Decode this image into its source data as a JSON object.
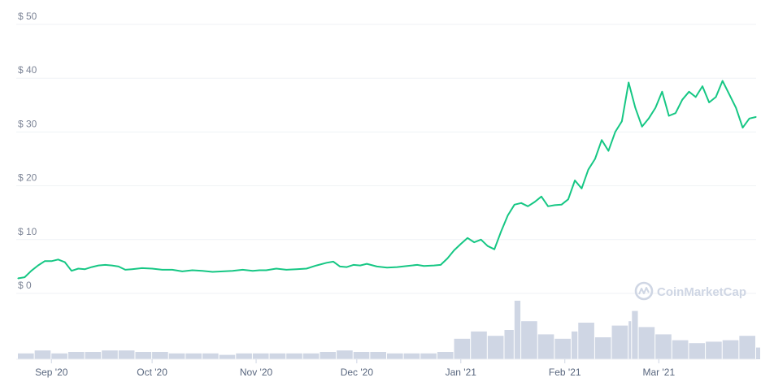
{
  "chart_data": {
    "type": "line",
    "y_axis": {
      "range": [
        0,
        50
      ],
      "ticks": [
        0,
        10,
        20,
        30,
        40,
        50
      ],
      "tick_labels": [
        "$ 0",
        "$ 10",
        "$ 20",
        "$ 30",
        "$ 40",
        "$ 50"
      ]
    },
    "x_axis": {
      "range": [
        "2020-08-22",
        "2021-03-30"
      ],
      "ticks": [
        {
          "date": "2020-09-01",
          "label": "Sep '20"
        },
        {
          "date": "2020-10-01",
          "label": "Oct '20"
        },
        {
          "date": "2020-11-01",
          "label": "Nov '20"
        },
        {
          "date": "2020-12-01",
          "label": "Dec '20"
        },
        {
          "date": "2021-01-01",
          "label": "Jan '21"
        },
        {
          "date": "2021-02-01",
          "label": "Feb '21"
        },
        {
          "date": "2021-03-01",
          "label": "Mar '21"
        }
      ]
    },
    "grid": "horizontal",
    "series": [
      {
        "type": "line",
        "color": "#16c784",
        "points": [
          [
            "2020-08-22",
            2.8
          ],
          [
            "2020-08-24",
            3.0
          ],
          [
            "2020-08-26",
            4.2
          ],
          [
            "2020-08-28",
            5.2
          ],
          [
            "2020-08-30",
            6.0
          ],
          [
            "2020-09-01",
            6.0
          ],
          [
            "2020-09-03",
            6.3
          ],
          [
            "2020-09-05",
            5.8
          ],
          [
            "2020-09-07",
            4.2
          ],
          [
            "2020-09-09",
            4.6
          ],
          [
            "2020-09-11",
            4.5
          ],
          [
            "2020-09-13",
            4.9
          ],
          [
            "2020-09-15",
            5.2
          ],
          [
            "2020-09-17",
            5.3
          ],
          [
            "2020-09-19",
            5.2
          ],
          [
            "2020-09-21",
            5.0
          ],
          [
            "2020-09-23",
            4.4
          ],
          [
            "2020-09-25",
            4.5
          ],
          [
            "2020-09-28",
            4.7
          ],
          [
            "2020-10-01",
            4.6
          ],
          [
            "2020-10-04",
            4.4
          ],
          [
            "2020-10-07",
            4.4
          ],
          [
            "2020-10-10",
            4.1
          ],
          [
            "2020-10-13",
            4.3
          ],
          [
            "2020-10-16",
            4.2
          ],
          [
            "2020-10-19",
            4.0
          ],
          [
            "2020-10-22",
            4.1
          ],
          [
            "2020-10-25",
            4.2
          ],
          [
            "2020-10-28",
            4.4
          ],
          [
            "2020-10-31",
            4.2
          ],
          [
            "2020-11-02",
            4.3
          ],
          [
            "2020-11-04",
            4.3
          ],
          [
            "2020-11-07",
            4.6
          ],
          [
            "2020-11-10",
            4.4
          ],
          [
            "2020-11-13",
            4.5
          ],
          [
            "2020-11-16",
            4.6
          ],
          [
            "2020-11-19",
            5.2
          ],
          [
            "2020-11-22",
            5.7
          ],
          [
            "2020-11-24",
            5.9
          ],
          [
            "2020-11-26",
            5.0
          ],
          [
            "2020-11-28",
            4.9
          ],
          [
            "2020-11-30",
            5.3
          ],
          [
            "2020-12-02",
            5.2
          ],
          [
            "2020-12-04",
            5.5
          ],
          [
            "2020-12-07",
            5.0
          ],
          [
            "2020-12-10",
            4.8
          ],
          [
            "2020-12-13",
            4.9
          ],
          [
            "2020-12-16",
            5.1
          ],
          [
            "2020-12-19",
            5.3
          ],
          [
            "2020-12-21",
            5.1
          ],
          [
            "2020-12-24",
            5.2
          ],
          [
            "2020-12-26",
            5.3
          ],
          [
            "2020-12-28",
            6.5
          ],
          [
            "2020-12-30",
            8.0
          ],
          [
            "2021-01-01",
            9.2
          ],
          [
            "2021-01-03",
            10.3
          ],
          [
            "2021-01-05",
            9.5
          ],
          [
            "2021-01-07",
            10.0
          ],
          [
            "2021-01-09",
            8.8
          ],
          [
            "2021-01-11",
            8.2
          ],
          [
            "2021-01-13",
            11.5
          ],
          [
            "2021-01-15",
            14.5
          ],
          [
            "2021-01-17",
            16.5
          ],
          [
            "2021-01-19",
            16.8
          ],
          [
            "2021-01-21",
            16.2
          ],
          [
            "2021-01-23",
            17.0
          ],
          [
            "2021-01-25",
            18.0
          ],
          [
            "2021-01-27",
            16.2
          ],
          [
            "2021-01-29",
            16.4
          ],
          [
            "2021-01-31",
            16.5
          ],
          [
            "2021-02-02",
            17.5
          ],
          [
            "2021-02-04",
            21.0
          ],
          [
            "2021-02-06",
            19.5
          ],
          [
            "2021-02-08",
            23.0
          ],
          [
            "2021-02-10",
            25.0
          ],
          [
            "2021-02-12",
            28.5
          ],
          [
            "2021-02-14",
            26.5
          ],
          [
            "2021-02-16",
            30.0
          ],
          [
            "2021-02-18",
            32.0
          ],
          [
            "2021-02-20",
            39.2
          ],
          [
            "2021-02-22",
            34.5
          ],
          [
            "2021-02-24",
            31.0
          ],
          [
            "2021-02-26",
            32.5
          ],
          [
            "2021-02-28",
            34.5
          ],
          [
            "2021-03-02",
            37.5
          ],
          [
            "2021-03-04",
            33.0
          ],
          [
            "2021-03-06",
            33.5
          ],
          [
            "2021-03-08",
            36.0
          ],
          [
            "2021-03-10",
            37.5
          ],
          [
            "2021-03-12",
            36.5
          ],
          [
            "2021-03-14",
            38.5
          ],
          [
            "2021-03-16",
            35.5
          ],
          [
            "2021-03-18",
            36.5
          ],
          [
            "2021-03-20",
            39.5
          ],
          [
            "2021-03-22",
            37.0
          ],
          [
            "2021-03-24",
            34.5
          ],
          [
            "2021-03-26",
            30.8
          ],
          [
            "2021-03-28",
            32.5
          ],
          [
            "2021-03-30",
            32.8
          ]
        ]
      },
      {
        "type": "bar",
        "role": "volume",
        "color": "#cfd6e4",
        "points": [
          [
            "2020-08-22",
            0.4
          ],
          [
            "2020-08-27",
            0.6
          ],
          [
            "2020-09-01",
            0.4
          ],
          [
            "2020-09-06",
            0.5
          ],
          [
            "2020-09-11",
            0.5
          ],
          [
            "2020-09-16",
            0.6
          ],
          [
            "2020-09-21",
            0.6
          ],
          [
            "2020-09-26",
            0.5
          ],
          [
            "2020-10-01",
            0.5
          ],
          [
            "2020-10-06",
            0.4
          ],
          [
            "2020-10-11",
            0.4
          ],
          [
            "2020-10-16",
            0.4
          ],
          [
            "2020-10-21",
            0.3
          ],
          [
            "2020-10-26",
            0.4
          ],
          [
            "2020-10-31",
            0.4
          ],
          [
            "2020-11-05",
            0.4
          ],
          [
            "2020-11-10",
            0.4
          ],
          [
            "2020-11-15",
            0.4
          ],
          [
            "2020-11-20",
            0.5
          ],
          [
            "2020-11-25",
            0.6
          ],
          [
            "2020-11-30",
            0.5
          ],
          [
            "2020-12-05",
            0.5
          ],
          [
            "2020-12-10",
            0.4
          ],
          [
            "2020-12-15",
            0.4
          ],
          [
            "2020-12-20",
            0.4
          ],
          [
            "2020-12-25",
            0.5
          ],
          [
            "2020-12-30",
            1.4
          ],
          [
            "2021-01-04",
            1.9
          ],
          [
            "2021-01-09",
            1.6
          ],
          [
            "2021-01-14",
            2.0
          ],
          [
            "2021-01-17",
            4.0
          ],
          [
            "2021-01-19",
            2.6
          ],
          [
            "2021-01-24",
            1.7
          ],
          [
            "2021-01-29",
            1.4
          ],
          [
            "2021-02-03",
            1.9
          ],
          [
            "2021-02-05",
            2.5
          ],
          [
            "2021-02-10",
            1.5
          ],
          [
            "2021-02-15",
            2.3
          ],
          [
            "2021-02-20",
            2.6
          ],
          [
            "2021-02-21",
            3.3
          ],
          [
            "2021-02-23",
            2.2
          ],
          [
            "2021-02-28",
            1.7
          ],
          [
            "2021-03-05",
            1.3
          ],
          [
            "2021-03-10",
            1.1
          ],
          [
            "2021-03-15",
            1.2
          ],
          [
            "2021-03-20",
            1.3
          ],
          [
            "2021-03-25",
            1.6
          ],
          [
            "2021-03-30",
            0.8
          ]
        ]
      }
    ],
    "watermark": "CoinMarketCap"
  },
  "colors": {
    "line": "#16c784",
    "volume": "#cfd6e4",
    "grid": "#eff2f5"
  }
}
